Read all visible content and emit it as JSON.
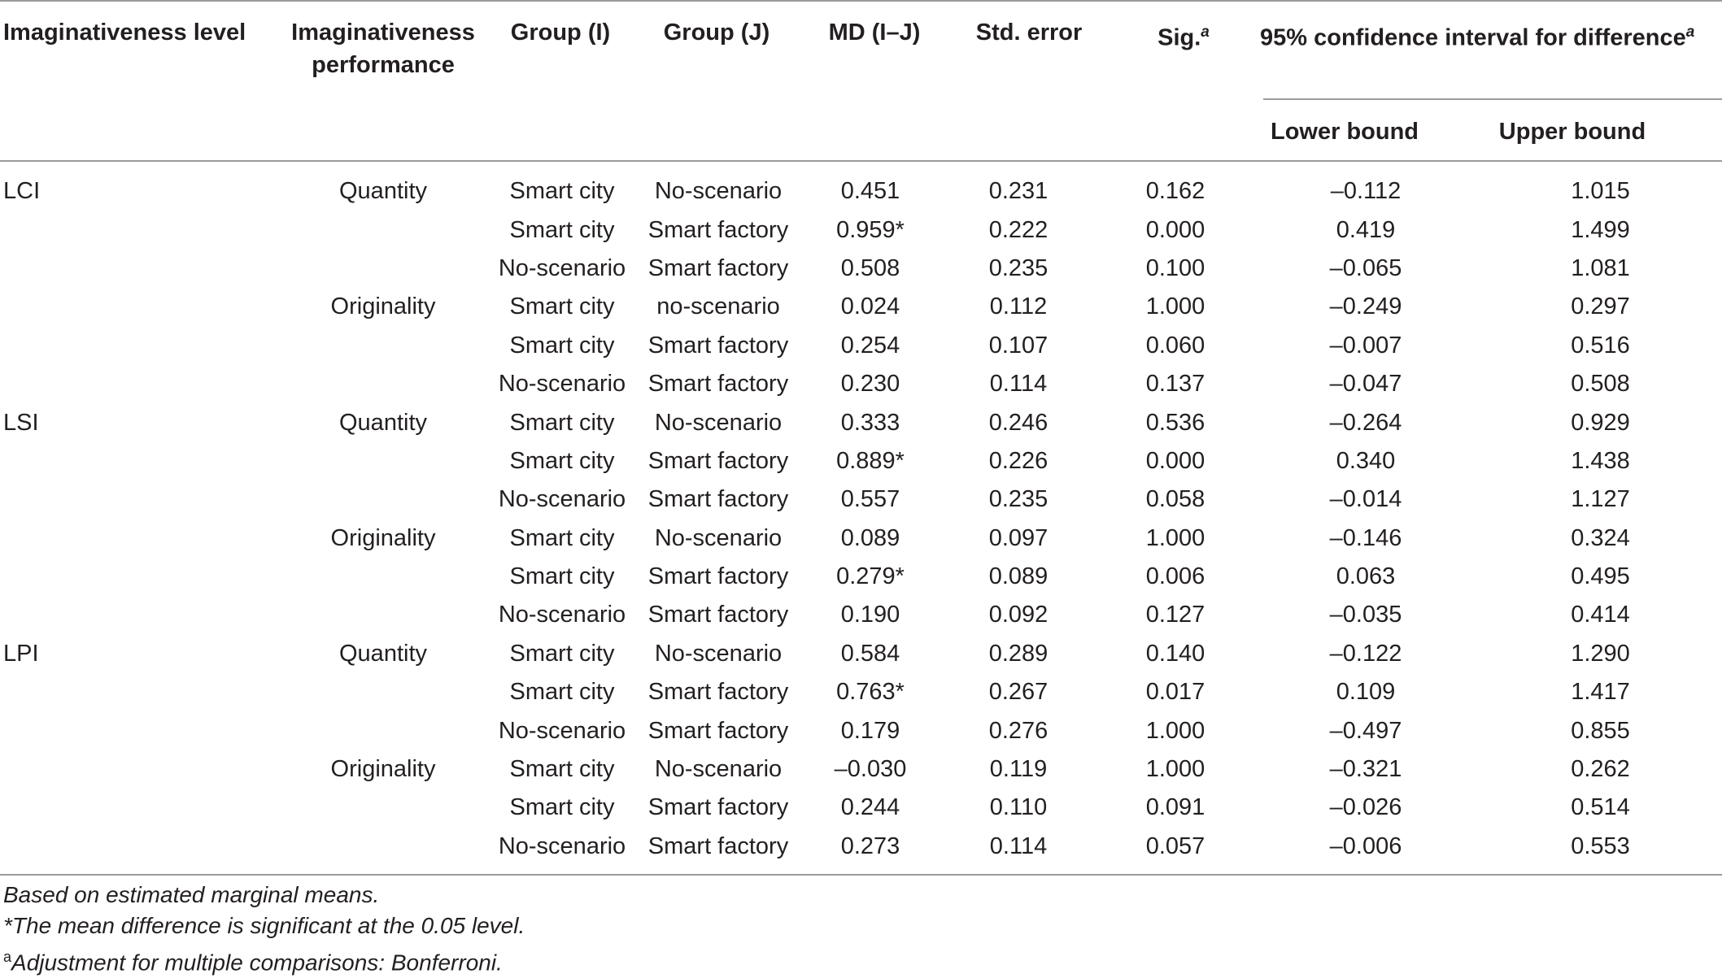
{
  "headers": {
    "level": "Imaginativeness level",
    "performance_line1": "Imaginativeness",
    "performance_line2": "performance",
    "group_i": "Group (I)",
    "group_j": "Group (J)",
    "md": "MD (I–J)",
    "std_error": "Std. error",
    "sig": "Sig.",
    "sig_sup": "a",
    "ci": "95% confidence interval for difference",
    "ci_sup": "a",
    "lower": "Lower bound",
    "upper": "Upper bound"
  },
  "rows": [
    {
      "level": "LCI",
      "perf": "Quantity",
      "gi": "Smart city",
      "gj": "No-scenario",
      "md": "0.451",
      "se": "0.231",
      "sig": "0.162",
      "lo": "–0.112",
      "hi": "1.015"
    },
    {
      "level": "",
      "perf": "",
      "gi": "Smart city",
      "gj": "Smart factory",
      "md": "0.959*",
      "se": "0.222",
      "sig": "0.000",
      "lo": "0.419",
      "hi": "1.499"
    },
    {
      "level": "",
      "perf": "",
      "gi": "No-scenario",
      "gj": "Smart factory",
      "md": "0.508",
      "se": "0.235",
      "sig": "0.100",
      "lo": "–0.065",
      "hi": "1.081"
    },
    {
      "level": "",
      "perf": "Originality",
      "gi": "Smart city",
      "gj": "no-scenario",
      "md": "0.024",
      "se": "0.112",
      "sig": "1.000",
      "lo": "–0.249",
      "hi": "0.297"
    },
    {
      "level": "",
      "perf": "",
      "gi": "Smart city",
      "gj": "Smart factory",
      "md": "0.254",
      "se": "0.107",
      "sig": "0.060",
      "lo": "–0.007",
      "hi": "0.516"
    },
    {
      "level": "",
      "perf": "",
      "gi": "No-scenario",
      "gj": "Smart factory",
      "md": "0.230",
      "se": "0.114",
      "sig": "0.137",
      "lo": "–0.047",
      "hi": "0.508"
    },
    {
      "level": "LSI",
      "perf": "Quantity",
      "gi": "Smart city",
      "gj": "No-scenario",
      "md": "0.333",
      "se": "0.246",
      "sig": "0.536",
      "lo": "–0.264",
      "hi": "0.929"
    },
    {
      "level": "",
      "perf": "",
      "gi": "Smart city",
      "gj": "Smart factory",
      "md": "0.889*",
      "se": "0.226",
      "sig": "0.000",
      "lo": "0.340",
      "hi": "1.438"
    },
    {
      "level": "",
      "perf": "",
      "gi": "No-scenario",
      "gj": "Smart factory",
      "md": "0.557",
      "se": "0.235",
      "sig": "0.058",
      "lo": "–0.014",
      "hi": "1.127"
    },
    {
      "level": "",
      "perf": "Originality",
      "gi": "Smart city",
      "gj": "No-scenario",
      "md": "0.089",
      "se": "0.097",
      "sig": "1.000",
      "lo": "–0.146",
      "hi": "0.324"
    },
    {
      "level": "",
      "perf": "",
      "gi": "Smart city",
      "gj": "Smart factory",
      "md": "0.279*",
      "se": "0.089",
      "sig": "0.006",
      "lo": "0.063",
      "hi": "0.495"
    },
    {
      "level": "",
      "perf": "",
      "gi": "No-scenario",
      "gj": "Smart factory",
      "md": "0.190",
      "se": "0.092",
      "sig": "0.127",
      "lo": "–0.035",
      "hi": "0.414"
    },
    {
      "level": "LPI",
      "perf": "Quantity",
      "gi": "Smart city",
      "gj": "No-scenario",
      "md": "0.584",
      "se": "0.289",
      "sig": "0.140",
      "lo": "–0.122",
      "hi": "1.290"
    },
    {
      "level": "",
      "perf": "",
      "gi": "Smart city",
      "gj": "Smart factory",
      "md": "0.763*",
      "se": "0.267",
      "sig": "0.017",
      "lo": "0.109",
      "hi": "1.417"
    },
    {
      "level": "",
      "perf": "",
      "gi": "No-scenario",
      "gj": "Smart factory",
      "md": "0.179",
      "se": "0.276",
      "sig": "1.000",
      "lo": "–0.497",
      "hi": "0.855"
    },
    {
      "level": "",
      "perf": "Originality",
      "gi": "Smart city",
      "gj": "No-scenario",
      "md": "–0.030",
      "se": "0.119",
      "sig": "1.000",
      "lo": "–0.321",
      "hi": "0.262"
    },
    {
      "level": "",
      "perf": "",
      "gi": "Smart city",
      "gj": "Smart factory",
      "md": "0.244",
      "se": "0.110",
      "sig": "0.091",
      "lo": "–0.026",
      "hi": "0.514"
    },
    {
      "level": "",
      "perf": "",
      "gi": "No-scenario",
      "gj": "Smart factory",
      "md": "0.273",
      "se": "0.114",
      "sig": "0.057",
      "lo": "–0.006",
      "hi": "0.553"
    }
  ],
  "notes": {
    "line1": "Based on estimated marginal means.",
    "line2": "*The mean difference is significant at the 0.05 level.",
    "line3_sup": "a",
    "line3": "Adjustment for multiple comparisons: Bonferroni."
  }
}
